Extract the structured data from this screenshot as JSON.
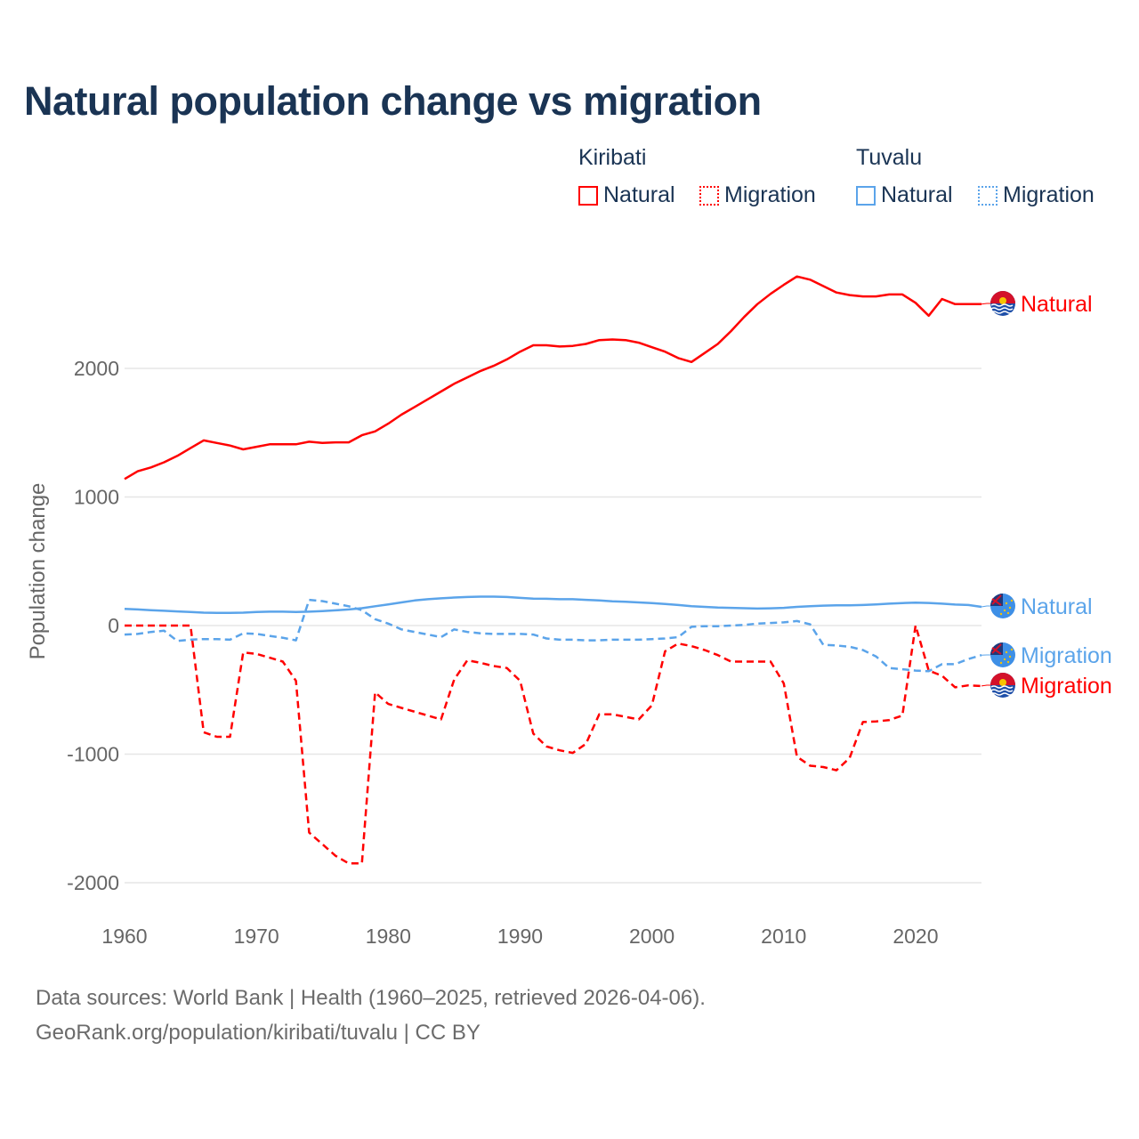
{
  "title": "Natural population change vs migration",
  "legend": {
    "groups": [
      {
        "name": "Kiribati",
        "items": [
          "Natural",
          "Migration"
        ],
        "color": "#ff0000"
      },
      {
        "name": "Tuvalu",
        "items": [
          "Natural",
          "Migration"
        ],
        "color": "#5ba4ea"
      }
    ]
  },
  "footer": {
    "source": "Data sources: World Bank | Health (1960–2025, retrieved 2026-04-06).",
    "credit": "GeoRank.org/population/kiribati/tuvalu | CC BY"
  },
  "chart_data": {
    "type": "line",
    "title": "Natural population change vs migration",
    "xlabel": "",
    "ylabel": "Population change",
    "xlim": [
      1960,
      2025
    ],
    "ylim": [
      -2100,
      2800
    ],
    "xticks": [
      "1960",
      "1970",
      "1980",
      "1990",
      "2000",
      "2010",
      "2020"
    ],
    "yticks": [
      "2000",
      "1000",
      "0",
      "-1000",
      "-2000"
    ],
    "grid": true,
    "legend_position": "top-right",
    "x_start": 1960,
    "series": [
      {
        "name": "Kiribati Natural",
        "label": "Natural",
        "color": "#ff0000",
        "dash": false,
        "values": [
          1140,
          1200,
          1230,
          1270,
          1320,
          1380,
          1440,
          1420,
          1400,
          1370,
          1390,
          1410,
          1410,
          1410,
          1430,
          1420,
          1425,
          1425,
          1480,
          1510,
          1570,
          1640,
          1700,
          1760,
          1820,
          1880,
          1930,
          1980,
          2020,
          2070,
          2130,
          2180,
          2180,
          2170,
          2175,
          2190,
          2220,
          2225,
          2220,
          2200,
          2165,
          2130,
          2080,
          2050,
          2120,
          2190,
          2290,
          2400,
          2500,
          2580,
          2650,
          2715,
          2690,
          2640,
          2590,
          2570,
          2560,
          2560,
          2575,
          2575,
          2510,
          2410,
          2540,
          2500,
          2500,
          2500
        ]
      },
      {
        "name": "Kiribati Migration",
        "label": "Migration",
        "color": "#ff0000",
        "dash": true,
        "values": [
          0,
          0,
          0,
          0,
          0,
          0,
          -830,
          -865,
          -865,
          -210,
          -220,
          -250,
          -280,
          -430,
          -1610,
          -1700,
          -1790,
          -1850,
          -1850,
          -520,
          -610,
          -640,
          -670,
          -700,
          -730,
          -420,
          -270,
          -290,
          -315,
          -330,
          -430,
          -840,
          -940,
          -970,
          -990,
          -920,
          -690,
          -690,
          -710,
          -730,
          -620,
          -200,
          -140,
          -160,
          -190,
          -230,
          -280,
          -280,
          -280,
          -280,
          -450,
          -1020,
          -1090,
          -1100,
          -1125,
          -1030,
          -750,
          -745,
          -735,
          -700,
          0,
          -350,
          -390,
          -480,
          -465,
          -470
        ]
      },
      {
        "name": "Tuvalu Natural",
        "label": "Natural",
        "color": "#5ba4ea",
        "dash": false,
        "values": [
          130,
          125,
          120,
          115,
          110,
          105,
          100,
          98,
          98,
          100,
          105,
          108,
          108,
          105,
          108,
          112,
          118,
          125,
          135,
          150,
          165,
          180,
          195,
          205,
          212,
          218,
          222,
          225,
          225,
          222,
          215,
          210,
          208,
          205,
          205,
          200,
          195,
          188,
          185,
          180,
          175,
          168,
          160,
          150,
          145,
          140,
          138,
          135,
          132,
          134,
          138,
          145,
          150,
          155,
          157,
          157,
          160,
          165,
          170,
          175,
          178,
          176,
          170,
          163,
          160,
          145
        ]
      },
      {
        "name": "Tuvalu Migration",
        "label": "Migration",
        "color": "#5ba4ea",
        "dash": true,
        "values": [
          -70,
          -65,
          -50,
          -40,
          -120,
          -110,
          -105,
          -105,
          -110,
          -60,
          -65,
          -80,
          -95,
          -115,
          200,
          190,
          170,
          150,
          120,
          50,
          15,
          -30,
          -50,
          -70,
          -90,
          -30,
          -50,
          -60,
          -65,
          -65,
          -65,
          -70,
          -100,
          -110,
          -110,
          -115,
          -115,
          -110,
          -110,
          -110,
          -105,
          -100,
          -90,
          -10,
          -5,
          -5,
          0,
          5,
          15,
          20,
          25,
          35,
          10,
          -150,
          -155,
          -165,
          -190,
          -240,
          -330,
          -340,
          -350,
          -355,
          -300,
          -300,
          -260,
          -230
        ]
      }
    ]
  }
}
